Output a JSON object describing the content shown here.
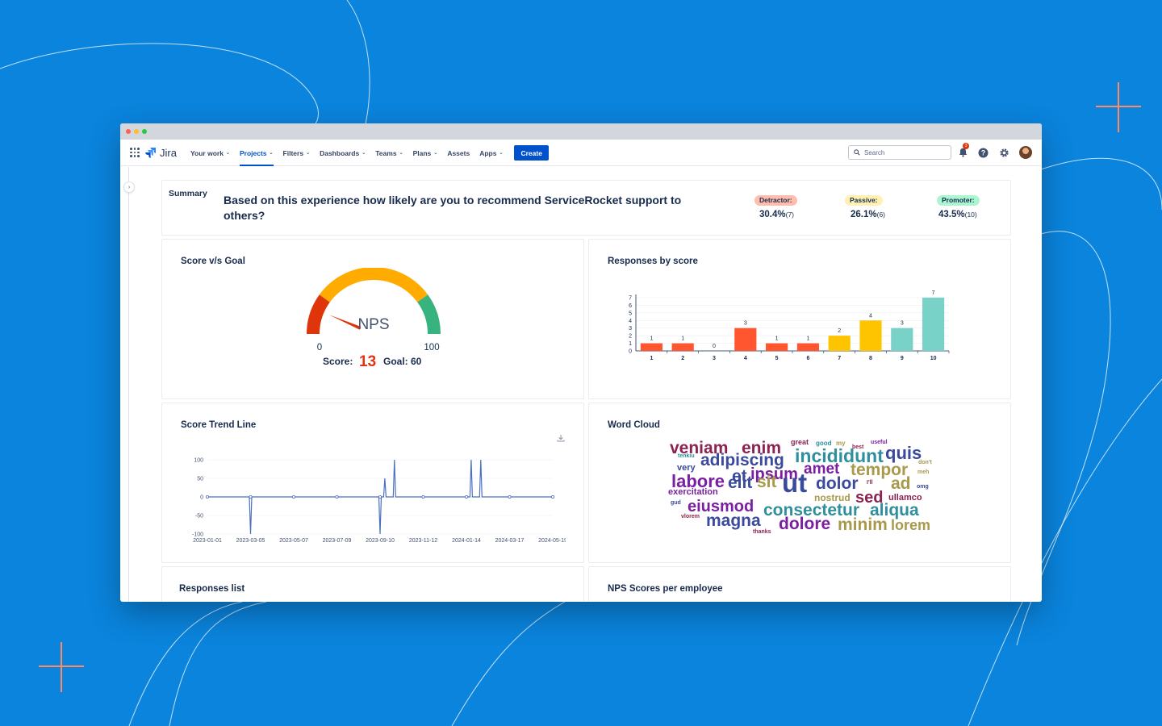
{
  "colors": {
    "background": "#0a84dd",
    "accent": "#0052cc",
    "detractor": "#ff5630",
    "passive": "#ffc400",
    "promoter": "#79d2c8",
    "gauge_red": "#de350b",
    "gauge_orange": "#ffab00",
    "gauge_green": "#36b37e"
  },
  "nav": {
    "logo": "Jira",
    "items": [
      {
        "label": "Your work",
        "dropdown": true
      },
      {
        "label": "Projects",
        "dropdown": true,
        "active": true
      },
      {
        "label": "Filters",
        "dropdown": true
      },
      {
        "label": "Dashboards",
        "dropdown": true
      },
      {
        "label": "Teams",
        "dropdown": true
      },
      {
        "label": "Plans",
        "dropdown": true
      },
      {
        "label": "Assets",
        "dropdown": false
      },
      {
        "label": "Apps",
        "dropdown": true
      }
    ],
    "create": "Create",
    "search_placeholder": "Search",
    "notifications_count": "3",
    "icons": [
      "app-switcher-icon",
      "notifications-icon",
      "help-icon",
      "settings-icon",
      "avatar"
    ]
  },
  "summary": {
    "label": "Summary",
    "question": "Based on this experience how likely are you to recommend ServiceRocket support to others?",
    "detractor": {
      "label": "Detractor:",
      "value": "30.4%",
      "count": "(7)"
    },
    "passive": {
      "label": "Passive:",
      "value": "26.1%",
      "count": "(6)"
    },
    "promoter": {
      "label": "Promoter:",
      "value": "43.5%",
      "count": "(10)"
    }
  },
  "gauge": {
    "title": "Score v/s Goal",
    "center_label": "NPS",
    "min_label": "0",
    "max_label": "100",
    "score_label": "Score:",
    "score": "13",
    "goal_label": "Goal: 60",
    "score_value": 13,
    "min": 0,
    "max": 100
  },
  "trend": {
    "title": "Score Trend Line",
    "download_icon": "download-icon"
  },
  "wordcloud": {
    "title": "Word Cloud",
    "words": [
      {
        "text": "veniam",
        "color": "#8b2252"
      },
      {
        "text": "enim",
        "color": "#8b2252"
      },
      {
        "text": "great",
        "color": "#8b2252"
      },
      {
        "text": "good",
        "color": "#2f8f9d"
      },
      {
        "text": "my",
        "color": "#a89a4a"
      },
      {
        "text": "useful",
        "color": "#7b1fa2"
      },
      {
        "text": "best",
        "color": "#8b2252"
      },
      {
        "text": "tenkiu",
        "color": "#2f8f9d"
      },
      {
        "text": "adipiscing",
        "color": "#3b4a9c"
      },
      {
        "text": "incididunt",
        "color": "#2f8f9d"
      },
      {
        "text": "quis",
        "color": "#3b4a9c"
      },
      {
        "text": "very",
        "color": "#3b4a9c"
      },
      {
        "text": "don't",
        "color": "#a89a4a"
      },
      {
        "text": "et",
        "color": "#3b4a9c"
      },
      {
        "text": "ipsum",
        "color": "#7b1fa2"
      },
      {
        "text": "amet",
        "color": "#7b1fa2"
      },
      {
        "text": "tempor",
        "color": "#a89a4a"
      },
      {
        "text": "meh",
        "color": "#a89a4a"
      },
      {
        "text": "labore",
        "color": "#7b1fa2"
      },
      {
        "text": "elit",
        "color": "#3b4a9c"
      },
      {
        "text": "sit",
        "color": "#a89a4a"
      },
      {
        "text": "ut",
        "color": "#3b4a9c"
      },
      {
        "text": "dolor",
        "color": "#3b4a9c"
      },
      {
        "text": "I'll",
        "color": "#8b2252"
      },
      {
        "text": "ad",
        "color": "#a89a4a"
      },
      {
        "text": "omg",
        "color": "#3b4a9c"
      },
      {
        "text": "exercitation",
        "color": "#7b1fa2"
      },
      {
        "text": "nostrud",
        "color": "#a89a4a"
      },
      {
        "text": "sed",
        "color": "#8b2252"
      },
      {
        "text": "ullamco",
        "color": "#8b2252"
      },
      {
        "text": "gud",
        "color": "#3b4a9c"
      },
      {
        "text": "eiusmod",
        "color": "#7b1fa2"
      },
      {
        "text": "consectetur",
        "color": "#2f8f9d"
      },
      {
        "text": "aliqua",
        "color": "#2f8f9d"
      },
      {
        "text": "vlorem",
        "color": "#8b2252"
      },
      {
        "text": "magna",
        "color": "#3b4a9c"
      },
      {
        "text": "dolore",
        "color": "#7b1fa2"
      },
      {
        "text": "minim",
        "color": "#a89a4a"
      },
      {
        "text": "lorem",
        "color": "#a89a4a"
      },
      {
        "text": "thanks",
        "color": "#8b2252"
      }
    ]
  },
  "bottom": {
    "responses_list": "Responses list",
    "nps_per_employee": "NPS Scores per employee"
  },
  "chart_data": [
    {
      "type": "bar",
      "title": "Responses by score",
      "categories": [
        "1",
        "2",
        "3",
        "4",
        "5",
        "6",
        "7",
        "8",
        "9",
        "10"
      ],
      "values": [
        1,
        1,
        0,
        3,
        1,
        1,
        2,
        4,
        3,
        7
      ],
      "colors": [
        "#ff5630",
        "#ff5630",
        "#ff5630",
        "#ff5630",
        "#ff5630",
        "#ff5630",
        "#ffc400",
        "#ffc400",
        "#79d2c8",
        "#79d2c8"
      ],
      "ylim": [
        0,
        7
      ],
      "yticks": [
        "0",
        "1",
        "2",
        "3",
        "4",
        "5",
        "6",
        "7"
      ],
      "grid": true
    },
    {
      "type": "line",
      "title": "Score Trend Line",
      "xticks": [
        "2023-01-01",
        "2023-03-05",
        "2023-05-07",
        "2023-07-09",
        "2023-09-10",
        "2023-11-12",
        "2024-01-14",
        "2024-03-17",
        "2024-05-19"
      ],
      "yticks": [
        "100",
        "50",
        "0",
        "-50",
        "-100"
      ],
      "ylim": [
        -100,
        100
      ],
      "series": [
        {
          "x": [
            "2023-01-01",
            "2023-03-05",
            "2023-05-07",
            "2023-07-09",
            "2023-09-10",
            "2023-09-17",
            "2023-10-01",
            "2023-11-12",
            "2024-01-14",
            "2024-01-21",
            "2024-02-04",
            "2024-03-17",
            "2024-05-19"
          ],
          "values": [
            0,
            0,
            0,
            0,
            0,
            50,
            100,
            0,
            0,
            100,
            100,
            0,
            0
          ],
          "dips": [
            [
              "2023-03-05",
              -100
            ],
            [
              "2023-09-10",
              -100
            ]
          ]
        }
      ],
      "grid": true
    }
  ]
}
